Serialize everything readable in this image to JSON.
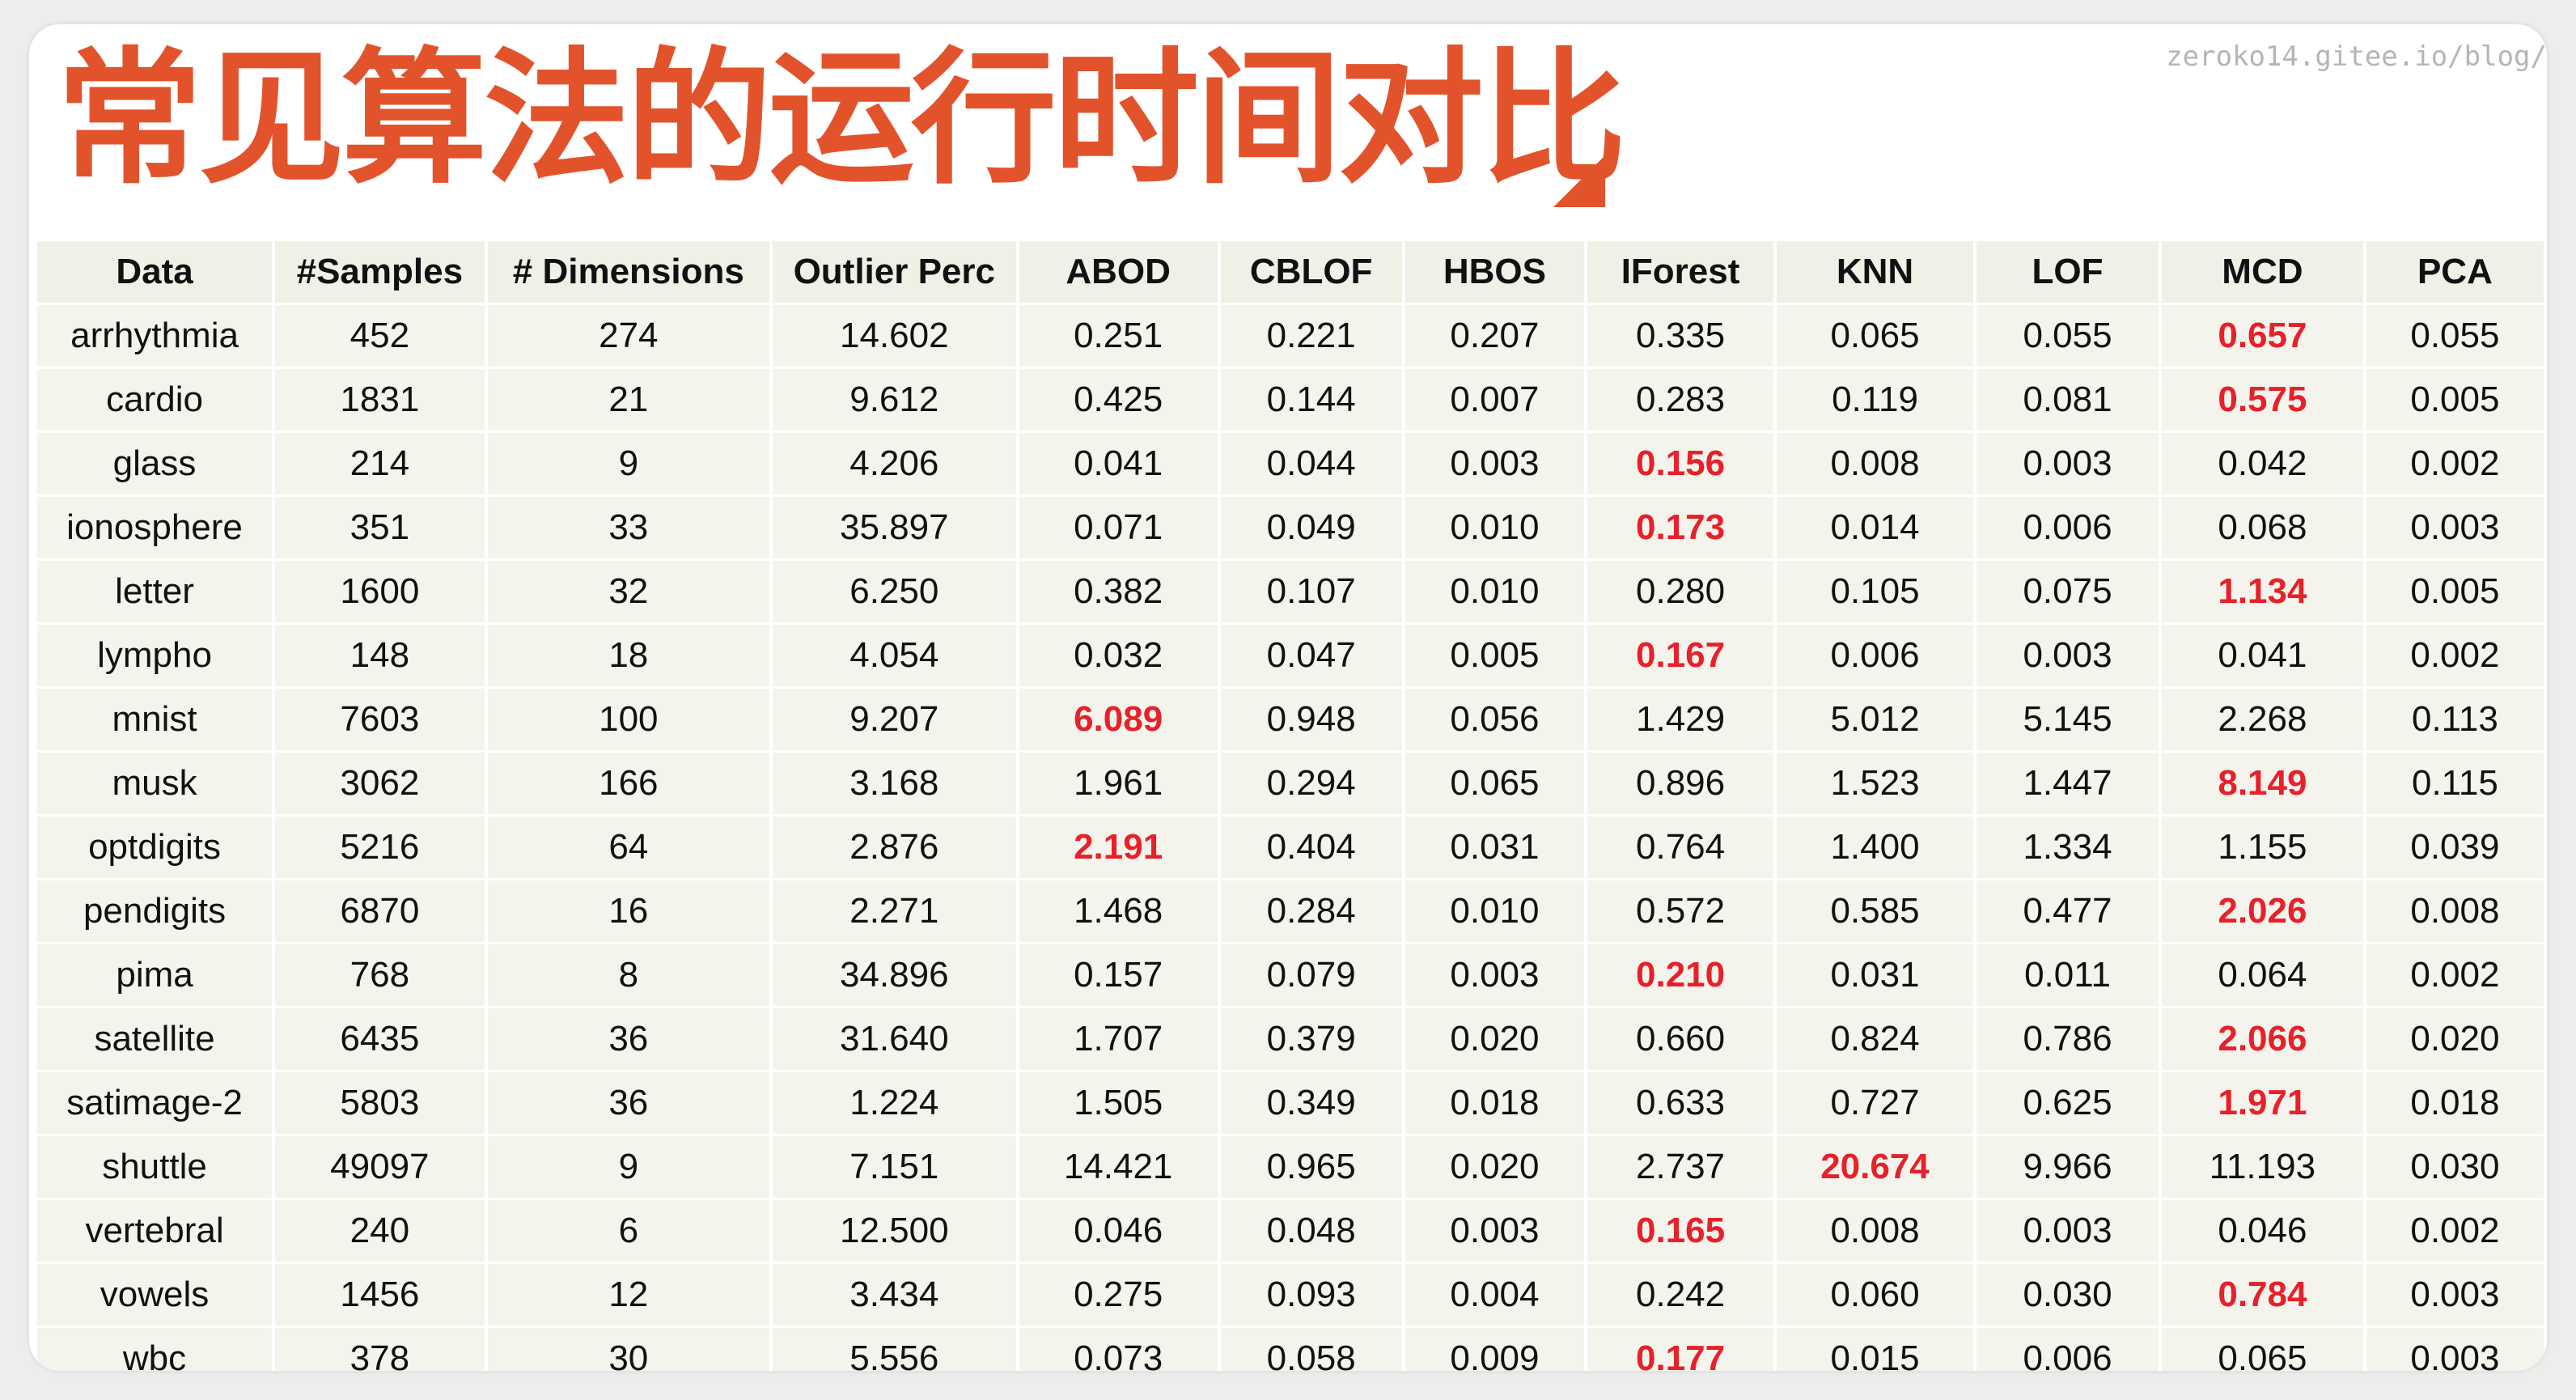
{
  "title": "常见算法的运行时间对比",
  "watermark": "zeroko14.gitee.io/blog/",
  "table": {
    "columns": [
      "Data",
      "#Samples",
      "# Dimensions",
      "Outlier Perc",
      "ABOD",
      "CBLOF",
      "HBOS",
      "IForest",
      "KNN",
      "LOF",
      "MCD",
      "PCA"
    ],
    "highlight_color": "#e8202a",
    "rows": [
      {
        "cells": [
          "arrhythmia",
          "452",
          "274",
          "14.602",
          "0.251",
          "0.221",
          "0.207",
          "0.335",
          "0.065",
          "0.055",
          "0.657",
          "0.055"
        ],
        "highlight": [
          10
        ]
      },
      {
        "cells": [
          "cardio",
          "1831",
          "21",
          "9.612",
          "0.425",
          "0.144",
          "0.007",
          "0.283",
          "0.119",
          "0.081",
          "0.575",
          "0.005"
        ],
        "highlight": [
          10
        ]
      },
      {
        "cells": [
          "glass",
          "214",
          "9",
          "4.206",
          "0.041",
          "0.044",
          "0.003",
          "0.156",
          "0.008",
          "0.003",
          "0.042",
          "0.002"
        ],
        "highlight": [
          7
        ]
      },
      {
        "cells": [
          "ionosphere",
          "351",
          "33",
          "35.897",
          "0.071",
          "0.049",
          "0.010",
          "0.173",
          "0.014",
          "0.006",
          "0.068",
          "0.003"
        ],
        "highlight": [
          7
        ]
      },
      {
        "cells": [
          "letter",
          "1600",
          "32",
          "6.250",
          "0.382",
          "0.107",
          "0.010",
          "0.280",
          "0.105",
          "0.075",
          "1.134",
          "0.005"
        ],
        "highlight": [
          10
        ]
      },
      {
        "cells": [
          "lympho",
          "148",
          "18",
          "4.054",
          "0.032",
          "0.047",
          "0.005",
          "0.167",
          "0.006",
          "0.003",
          "0.041",
          "0.002"
        ],
        "highlight": [
          7
        ]
      },
      {
        "cells": [
          "mnist",
          "7603",
          "100",
          "9.207",
          "6.089",
          "0.948",
          "0.056",
          "1.429",
          "5.012",
          "5.145",
          "2.268",
          "0.113"
        ],
        "highlight": [
          4
        ]
      },
      {
        "cells": [
          "musk",
          "3062",
          "166",
          "3.168",
          "1.961",
          "0.294",
          "0.065",
          "0.896",
          "1.523",
          "1.447",
          "8.149",
          "0.115"
        ],
        "highlight": [
          10
        ]
      },
      {
        "cells": [
          "optdigits",
          "5216",
          "64",
          "2.876",
          "2.191",
          "0.404",
          "0.031",
          "0.764",
          "1.400",
          "1.334",
          "1.155",
          "0.039"
        ],
        "highlight": [
          4
        ]
      },
      {
        "cells": [
          "pendigits",
          "6870",
          "16",
          "2.271",
          "1.468",
          "0.284",
          "0.010",
          "0.572",
          "0.585",
          "0.477",
          "2.026",
          "0.008"
        ],
        "highlight": [
          10
        ]
      },
      {
        "cells": [
          "pima",
          "768",
          "8",
          "34.896",
          "0.157",
          "0.079",
          "0.003",
          "0.210",
          "0.031",
          "0.011",
          "0.064",
          "0.002"
        ],
        "highlight": [
          7
        ]
      },
      {
        "cells": [
          "satellite",
          "6435",
          "36",
          "31.640",
          "1.707",
          "0.379",
          "0.020",
          "0.660",
          "0.824",
          "0.786",
          "2.066",
          "0.020"
        ],
        "highlight": [
          10
        ]
      },
      {
        "cells": [
          "satimage-2",
          "5803",
          "36",
          "1.224",
          "1.505",
          "0.349",
          "0.018",
          "0.633",
          "0.727",
          "0.625",
          "1.971",
          "0.018"
        ],
        "highlight": [
          10
        ]
      },
      {
        "cells": [
          "shuttle",
          "49097",
          "9",
          "7.151",
          "14.421",
          "0.965",
          "0.020",
          "2.737",
          "20.674",
          "9.966",
          "11.193",
          "0.030"
        ],
        "highlight": [
          8
        ]
      },
      {
        "cells": [
          "vertebral",
          "240",
          "6",
          "12.500",
          "0.046",
          "0.048",
          "0.003",
          "0.165",
          "0.008",
          "0.003",
          "0.046",
          "0.002"
        ],
        "highlight": [
          7
        ]
      },
      {
        "cells": [
          "vowels",
          "1456",
          "12",
          "3.434",
          "0.275",
          "0.093",
          "0.004",
          "0.242",
          "0.060",
          "0.030",
          "0.784",
          "0.003"
        ],
        "highlight": [
          10
        ]
      },
      {
        "cells": [
          "wbc",
          "378",
          "30",
          "5.556",
          "0.073",
          "0.058",
          "0.009",
          "0.177",
          "0.015",
          "0.006",
          "0.065",
          "0.003"
        ],
        "highlight": [
          7
        ]
      }
    ]
  }
}
